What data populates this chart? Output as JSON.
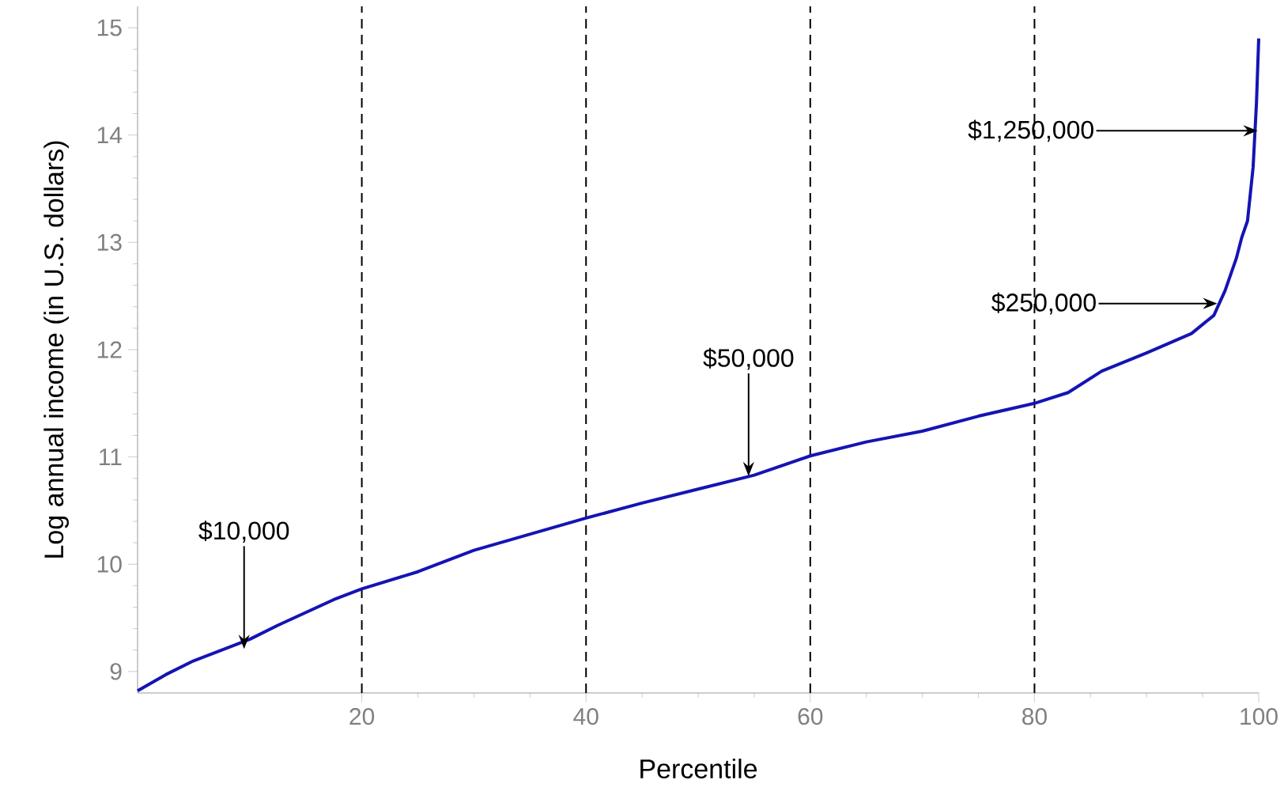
{
  "chart_data": {
    "type": "line",
    "xlabel": "Percentile",
    "ylabel": "Log annual income (in U.S. dollars)",
    "x": [
      0,
      2.5,
      5,
      7.5,
      10,
      12.5,
      15,
      17.5,
      20,
      25,
      30,
      35,
      40,
      45,
      50,
      55,
      60,
      65,
      70,
      75,
      80,
      83,
      86,
      90,
      94,
      96,
      97,
      98,
      98.5,
      99,
      99.5,
      99.8,
      100
    ],
    "series": [
      {
        "color": "#1414b4",
        "values": [
          8.82,
          8.97,
          9.1,
          9.2,
          9.3,
          9.43,
          9.55,
          9.67,
          9.77,
          9.93,
          10.13,
          10.28,
          10.43,
          10.57,
          10.7,
          10.83,
          11.01,
          11.14,
          11.24,
          11.38,
          11.5,
          11.6,
          11.8,
          11.97,
          12.15,
          12.32,
          12.55,
          12.85,
          13.05,
          13.2,
          13.7,
          14.3,
          14.9
        ]
      }
    ],
    "xlim": [
      0,
      100
    ],
    "ylim": [
      8.8,
      15.2
    ],
    "xticks": [
      20,
      40,
      60,
      80,
      100
    ],
    "yticks": [
      9,
      10,
      11,
      12,
      13,
      14,
      15
    ],
    "marker": "none",
    "line_style": "solid",
    "ref_lines": [
      {
        "axis": "x",
        "value": 20,
        "color": "#000000",
        "line_style": "dashed"
      },
      {
        "axis": "x",
        "value": 40,
        "color": "#000000",
        "line_style": "dashed"
      },
      {
        "axis": "x",
        "value": 60,
        "color": "#000000",
        "line_style": "dashed"
      },
      {
        "axis": "x",
        "value": 80,
        "color": "#000000",
        "line_style": "dashed"
      }
    ],
    "annotations": [
      {
        "text": "$10,000",
        "x": 9.5,
        "y": 9.21
      },
      {
        "text": "$50,000",
        "x": 54.5,
        "y": 10.82
      },
      {
        "text": "$250,000",
        "x": 96.3,
        "y": 12.43
      },
      {
        "text": "$1,250,000",
        "x": 99.9,
        "y": 14.04
      }
    ]
  }
}
